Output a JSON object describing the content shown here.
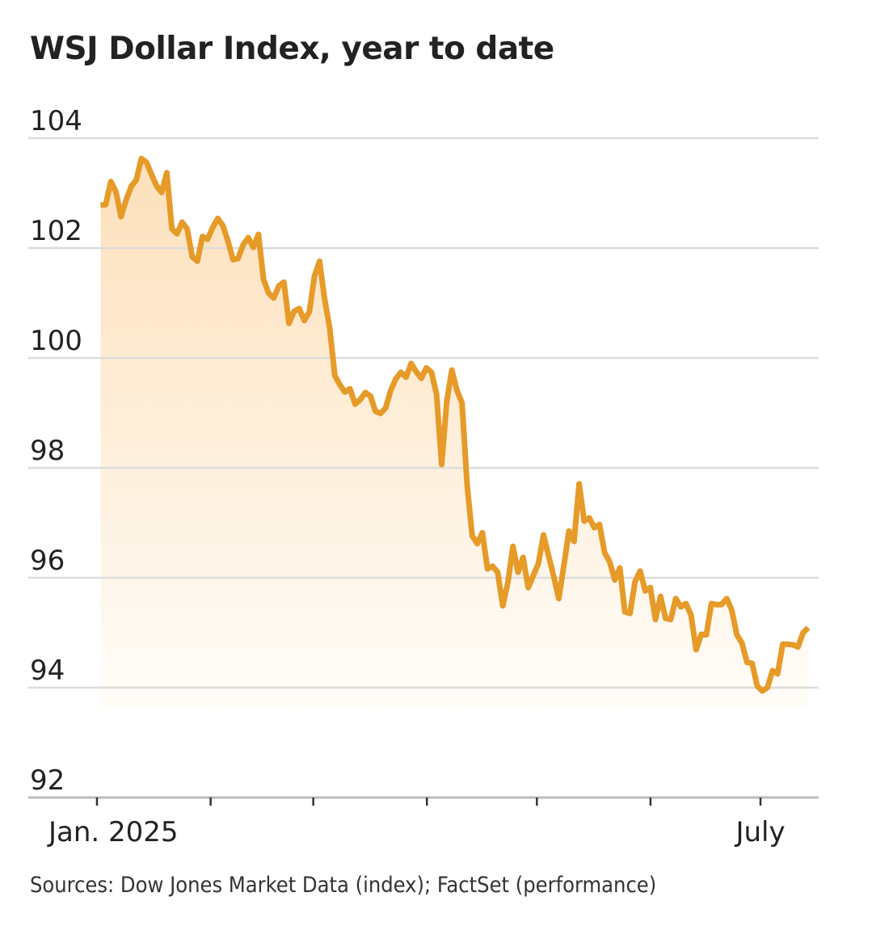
{
  "chart_data": {
    "type": "area",
    "title": "WSJ Dollar Index, year to date",
    "source": "Sources: Dow Jones Market Data (index); FactSet (performance)",
    "xlabel": "",
    "ylabel": "",
    "ylim": [
      92,
      104
    ],
    "yticks": [
      92,
      94,
      96,
      98,
      100,
      102,
      104
    ],
    "ytick_labels": [
      "92",
      "94",
      "96",
      "98",
      "100",
      "102",
      "104"
    ],
    "xlim": [
      "2025-01-01",
      "2025-07-17"
    ],
    "xticks": [
      "2025-01-01",
      "2025-02-01",
      "2025-03-01",
      "2025-04-01",
      "2025-05-01",
      "2025-06-01",
      "2025-07-01"
    ],
    "xtick_labels": [
      "Jan. 2025",
      "",
      "",
      "",
      "",
      "",
      "July"
    ],
    "grid": true,
    "line_color": "#e69a28",
    "fill_color_top": "#fde0bb",
    "fill_color_bottom": "#fffdf9",
    "series": [
      {
        "start_date": "2025-01-02",
        "end_date": "2025-07-14",
        "values": [
          102.78,
          102.79,
          103.21,
          103.03,
          102.57,
          102.87,
          103.12,
          103.24,
          103.63,
          103.56,
          103.34,
          103.13,
          103.01,
          103.37,
          102.35,
          102.26,
          102.47,
          102.35,
          101.84,
          101.76,
          102.21,
          102.16,
          102.37,
          102.54,
          102.41,
          102.13,
          101.79,
          101.81,
          102.06,
          102.19,
          102.01,
          102.25,
          101.43,
          101.18,
          101.09,
          101.31,
          101.38,
          100.63,
          100.85,
          100.9,
          100.68,
          100.84,
          101.49,
          101.76,
          101.07,
          100.54,
          99.68,
          99.51,
          99.38,
          99.44,
          99.16,
          99.24,
          99.37,
          99.31,
          99.03,
          98.99,
          99.09,
          99.41,
          99.62,
          99.74,
          99.65,
          99.9,
          99.75,
          99.63,
          99.82,
          99.74,
          99.34,
          98.06,
          99.21,
          99.78,
          99.41,
          99.18,
          97.69,
          96.76,
          96.62,
          96.82,
          96.16,
          96.21,
          96.1,
          95.49,
          95.91,
          96.57,
          96.1,
          96.37,
          95.82,
          96.04,
          96.26,
          96.78,
          96.4,
          96.03,
          95.62,
          96.22,
          96.85,
          96.66,
          97.71,
          97.03,
          97.09,
          96.91,
          96.97,
          96.46,
          96.29,
          95.96,
          96.18,
          95.38,
          95.35,
          95.93,
          96.12,
          95.76,
          95.82,
          95.24,
          95.66,
          95.26,
          95.24,
          95.62,
          95.47,
          95.53,
          95.32,
          94.69,
          94.97,
          94.96,
          95.53,
          95.51,
          95.51,
          95.62,
          95.41,
          94.96,
          94.81,
          94.46,
          94.44,
          94.03,
          93.94,
          94.0,
          94.31,
          94.25,
          94.79,
          94.79,
          94.78,
          94.74,
          95.0,
          95.09
        ]
      }
    ]
  }
}
